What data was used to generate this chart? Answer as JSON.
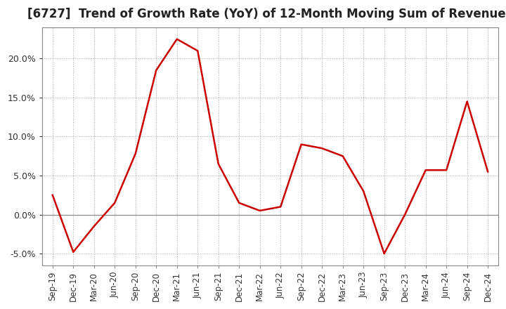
{
  "title": "[6727]  Trend of Growth Rate (YoY) of 12-Month Moving Sum of Revenues",
  "title_fontsize": 12,
  "line_color": "#cc0000",
  "background_color": "#ffffff",
  "grid_color": "#aaaaaa",
  "x_labels": [
    "Sep-19",
    "Dec-19",
    "Mar-20",
    "Jun-20",
    "Sep-20",
    "Dec-20",
    "Mar-21",
    "Jun-21",
    "Sep-21",
    "Dec-21",
    "Mar-22",
    "Jun-22",
    "Sep-22",
    "Dec-22",
    "Mar-23",
    "Jun-23",
    "Sep-23",
    "Dec-23",
    "Mar-24",
    "Jun-24",
    "Sep-24",
    "Dec-24"
  ],
  "y_values": [
    2.5,
    -4.8,
    -1.5,
    1.5,
    7.8,
    18.5,
    22.5,
    21.0,
    6.5,
    1.5,
    0.5,
    1.0,
    9.0,
    8.5,
    7.5,
    3.0,
    -5.0,
    0.0,
    5.7,
    5.7,
    14.5,
    5.5
  ],
  "ylim": [
    -6.5,
    24
  ],
  "yticks": [
    -5.0,
    0.0,
    5.0,
    10.0,
    15.0,
    20.0
  ],
  "spine_color": "#888888",
  "tick_label_color": "#333333",
  "tick_label_fontsize": 9,
  "x_tick_fontsize": 8.5
}
